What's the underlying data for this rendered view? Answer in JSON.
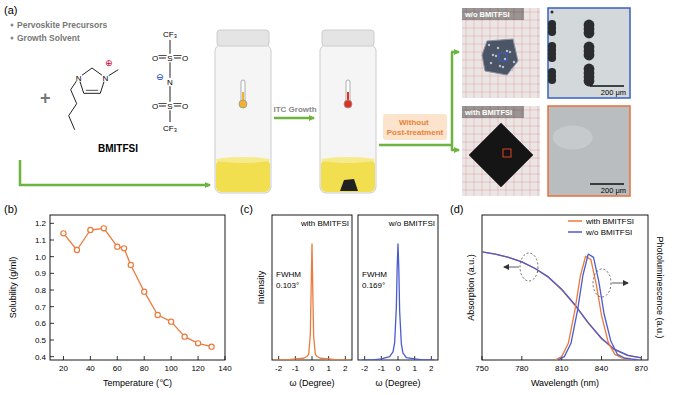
{
  "diagram": {
    "panel_label": "(a)",
    "inputs": [
      "Pervoskite Precursors",
      "Growth Solvent"
    ],
    "plus": "+",
    "molecule": {
      "name": "BMITFSI",
      "cation_atoms": [
        "N",
        "N"
      ],
      "anion_atoms": [
        "S",
        "O",
        "O",
        "N",
        "S",
        "O",
        "O"
      ],
      "groups": [
        "CF₃",
        "CF₃"
      ],
      "charges": [
        "⊕",
        "⊖"
      ]
    },
    "step": "ITC Growth",
    "post": "Without Post-treatment",
    "samples": [
      {
        "label": "w/o BMITFSI",
        "scale_bar": "200 μm"
      },
      {
        "label": "with BMITFSI",
        "scale_bar": "200 μm"
      }
    ]
  },
  "chart_data": [
    {
      "type": "line",
      "title": "(b)",
      "x_label": "Temperature (℃)",
      "y_label": "Solubility (g/ml)",
      "x": [
        20,
        30,
        40,
        50,
        60,
        65,
        70,
        80,
        90,
        100,
        110,
        120,
        130
      ],
      "series": [
        {
          "color": "#ec7a3c",
          "marker": "circle",
          "values": [
            1.14,
            1.04,
            1.16,
            1.17,
            1.06,
            1.05,
            0.95,
            0.79,
            0.65,
            0.61,
            0.52,
            0.48,
            0.46
          ]
        }
      ],
      "xlim": [
        10,
        140
      ],
      "xticks": [
        20,
        40,
        60,
        80,
        100,
        120,
        140
      ],
      "ylim": [
        0.38,
        1.25
      ],
      "yticks": [
        0.4,
        0.5,
        0.6,
        0.7,
        0.8,
        0.9,
        {
          "value": 1,
          "label": "1.0"
        },
        1.1,
        1.2
      ],
      "grid": false
    },
    {
      "type": "line",
      "title": "(c)",
      "x_label": "ω (Degree)",
      "y_label": "Intensity",
      "annotations": [
        "with BMITFSI",
        "FWHM",
        "0.103°"
      ],
      "xlim": [
        -2.4,
        2.4
      ],
      "xticks": [
        -2,
        -1,
        0,
        1,
        2
      ],
      "ylim": [
        0,
        1.25
      ],
      "tick_labels": "x",
      "series": [
        {
          "color": "#ec7a3c",
          "x": [
            -2.2,
            -1.5,
            -1,
            -0.5,
            -0.3,
            -0.2,
            -0.1,
            -0.05,
            0,
            0.05,
            0.1,
            0.2,
            0.3,
            0.5,
            1,
            1.5,
            2.2
          ],
          "values": [
            0,
            0,
            0.01,
            0.015,
            0.03,
            0.05,
            0.22,
            0.62,
            1,
            0.58,
            0.2,
            0.05,
            0.03,
            0.015,
            0.01,
            0,
            0
          ]
        }
      ]
    },
    {
      "type": "line",
      "x_label": "ω (Degree)",
      "annotations": [
        "w/o BMITFSI",
        "FWHM",
        "0.169°"
      ],
      "xlim": [
        -2.4,
        2.4
      ],
      "xticks": [
        -2,
        -1,
        0,
        1,
        2
      ],
      "ylim": [
        0,
        1.25
      ],
      "tick_labels": "x",
      "series": [
        {
          "color": "#4a5bd0",
          "x": [
            -2.2,
            -1.5,
            -1,
            -0.5,
            -0.3,
            -0.2,
            -0.1,
            -0.05,
            0,
            0.05,
            0.1,
            0.2,
            0.3,
            0.5,
            1,
            1.5,
            2.2
          ],
          "values": [
            0,
            0,
            0.01,
            0.03,
            0.07,
            0.15,
            0.45,
            0.8,
            1,
            0.78,
            0.42,
            0.14,
            0.06,
            0.02,
            0.01,
            0,
            0
          ]
        }
      ]
    },
    {
      "type": "line",
      "title": "(d)",
      "x_label": "Wavelength (nm)",
      "y_label": "Absorption (a.u.)",
      "y2_label": "Photoluminescence (a.u.)",
      "xlim": [
        750,
        875
      ],
      "xticks": [
        750,
        780,
        810,
        840,
        870
      ],
      "ylim": [
        0,
        1.3
      ],
      "y2lim": [
        0,
        1.3
      ],
      "tick_labels": "x",
      "legend": "upper right",
      "series": [
        {
          "name": "with BMITFSI",
          "color": "#ec7a3c",
          "x": [
            750,
            760,
            770,
            780,
            790,
            800,
            810,
            820,
            830,
            840,
            850,
            860,
            870
          ],
          "values": [
            0.97,
            0.95,
            0.92,
            0.88,
            0.82,
            0.74,
            0.63,
            0.49,
            0.33,
            0.19,
            0.09,
            0.04,
            0.02
          ]
        },
        {
          "name": "w/o BMITFSI",
          "color": "#4a5bd0",
          "x": [
            750,
            760,
            770,
            780,
            790,
            800,
            810,
            820,
            830,
            840,
            850,
            860,
            870
          ],
          "values": [
            0.97,
            0.95,
            0.92,
            0.88,
            0.82,
            0.745,
            0.635,
            0.495,
            0.335,
            0.195,
            0.095,
            0.042,
            0.02
          ]
        },
        {
          "name": "with BMITFSI",
          "color": "#ec7a3c",
          "axis": "y2",
          "x": [
            805,
            810,
            815,
            820,
            824,
            828,
            832,
            836,
            840,
            845,
            850,
            855,
            860,
            866
          ],
          "values": [
            0,
            0.03,
            0.15,
            0.45,
            0.75,
            0.93,
            0.9,
            0.68,
            0.4,
            0.16,
            0.05,
            0.02,
            0.01,
            0
          ]
        },
        {
          "name": "w/o BMITFSI",
          "color": "#4a5bd0",
          "axis": "y2",
          "x": [
            807,
            812,
            817,
            822,
            826,
            830,
            834,
            838,
            842,
            847,
            852,
            857,
            862,
            868
          ],
          "values": [
            0,
            0.03,
            0.15,
            0.45,
            0.76,
            0.95,
            0.92,
            0.7,
            0.41,
            0.17,
            0.05,
            0.02,
            0.01,
            0
          ]
        }
      ]
    }
  ]
}
